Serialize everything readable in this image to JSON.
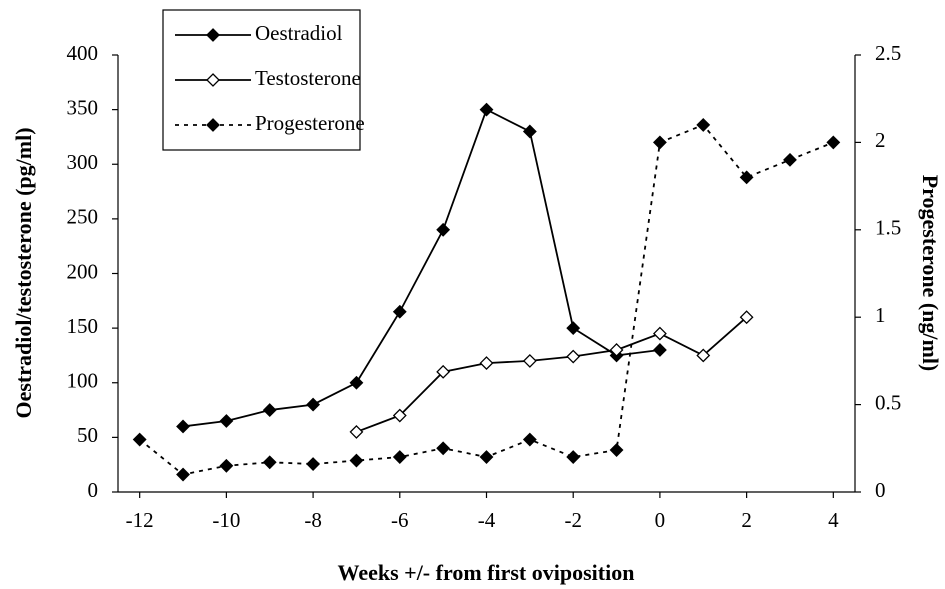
{
  "chart_data": {
    "type": "line",
    "xlabel": "Weeks +/- from first oviposition",
    "ylabel": "Oestradiol/testosterone (pg/ml)",
    "y2label": "Progesterone (ng/ml)",
    "xlim": [
      -12.5,
      4.5
    ],
    "xticks": [
      -12,
      -10,
      -8,
      -6,
      -4,
      -2,
      0,
      2,
      4
    ],
    "ylim": [
      0,
      400
    ],
    "yticks": [
      0,
      50,
      100,
      150,
      200,
      250,
      300,
      350,
      400
    ],
    "y2lim": [
      0,
      2.5
    ],
    "y2ticks": [
      0,
      0.5,
      1,
      1.5,
      2,
      2.5
    ],
    "legend": "upper left",
    "series": [
      {
        "name": "Oestradiol",
        "color": "#000000",
        "linestyle": "solid",
        "marker": "filled",
        "x": [
          -11,
          -10,
          -9,
          -8,
          -7,
          -6,
          -5,
          -4,
          -3,
          -2,
          -1,
          0
        ],
        "values": [
          60,
          65,
          75,
          80,
          100,
          165,
          240,
          350,
          330,
          150,
          125,
          130
        ]
      },
      {
        "name": "Testosterone",
        "color": "#000000",
        "linestyle": "solid",
        "marker": "open",
        "x": [
          -7,
          -6,
          -5,
          -4,
          -3,
          -2,
          -1,
          0,
          1,
          2
        ],
        "values": [
          55,
          70,
          110,
          118,
          120,
          124,
          130,
          145,
          125,
          160
        ]
      },
      {
        "name": "Progesterone",
        "color": "#000000",
        "linestyle": "dashed",
        "marker": "filled",
        "axis": "y2",
        "x": [
          -12,
          -11,
          -10,
          -9,
          -8,
          -7,
          -6,
          -5,
          -4,
          -3,
          -2,
          -1,
          0,
          1,
          2,
          3,
          4
        ],
        "values": [
          0.3,
          0.1,
          0.15,
          0.17,
          0.16,
          0.18,
          0.2,
          0.25,
          0.2,
          0.3,
          0.2,
          0.24,
          2.0,
          2.1,
          1.8,
          1.9,
          2.0
        ]
      }
    ]
  }
}
